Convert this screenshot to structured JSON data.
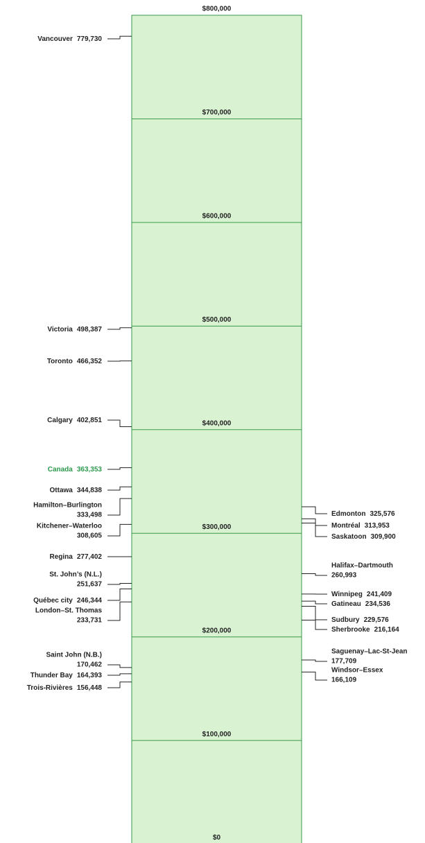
{
  "chart_data": {
    "type": "scale",
    "categories": [
      "Vancouver",
      "Victoria",
      "Toronto",
      "Calgary",
      "Canada",
      "Ottawa",
      "Hamilton–Burlington",
      "Kitchener–Waterloo",
      "Regina",
      "St. John’s (N.L.)",
      "Québec city",
      "London–St. Thomas",
      "Saint John (N.B.)",
      "Thunder Bay",
      "Trois-Rivières",
      "Edmonton",
      "Montréal",
      "Saskatoon",
      "Halifax–Dartmouth",
      "Winnipeg",
      "Gatineau",
      "Sudbury",
      "Sherbrooke",
      "Saguenay–Lac-St-Jean",
      "Windsor–Essex"
    ],
    "values": [
      779730,
      498387,
      466352,
      402851,
      363353,
      344838,
      333498,
      308605,
      277402,
      251637,
      246344,
      233731,
      170462,
      164393,
      156448,
      325576,
      313953,
      309900,
      260993,
      241409,
      234536,
      229576,
      216164,
      177709,
      166109
    ],
    "value_labels": [
      "779,730",
      "498,387",
      "466,352",
      "402,851",
      "363,353",
      "344,838",
      "333,498",
      "308,605",
      "277,402",
      "251,637",
      "246,344",
      "233,731",
      "170,462",
      "164,393",
      "156,448",
      "325,576",
      "313,953",
      "309,900",
      "260,993",
      "241,409",
      "234,536",
      "229,576",
      "216,164",
      "177,709",
      "166,109"
    ],
    "colors": [
      "#222",
      "#222",
      "#222",
      "#222",
      "#2e9a4e",
      "#222",
      "#222",
      "#222",
      "#222",
      "#222",
      "#222",
      "#222",
      "#222",
      "#222",
      "#222",
      "#222",
      "#222",
      "#222",
      "#222",
      "#222",
      "#222",
      "#222",
      "#222",
      "#222",
      "#222"
    ],
    "ylim": [
      0,
      800000
    ],
    "yticks": [
      {
        "value": 0,
        "label": "$0"
      },
      {
        "value": 100000,
        "label": "$100,000"
      },
      {
        "value": 200000,
        "label": "$200,000"
      },
      {
        "value": 300000,
        "label": "$300,000"
      },
      {
        "value": 400000,
        "label": "$400,000"
      },
      {
        "value": 500000,
        "label": "$500,000"
      },
      {
        "value": 600000,
        "label": "$600,000"
      },
      {
        "value": 700000,
        "label": "$700,000"
      },
      {
        "value": 800000,
        "label": "$800,000"
      }
    ],
    "fill": "#d8f2d2",
    "line_color": "#3a9a4a"
  }
}
